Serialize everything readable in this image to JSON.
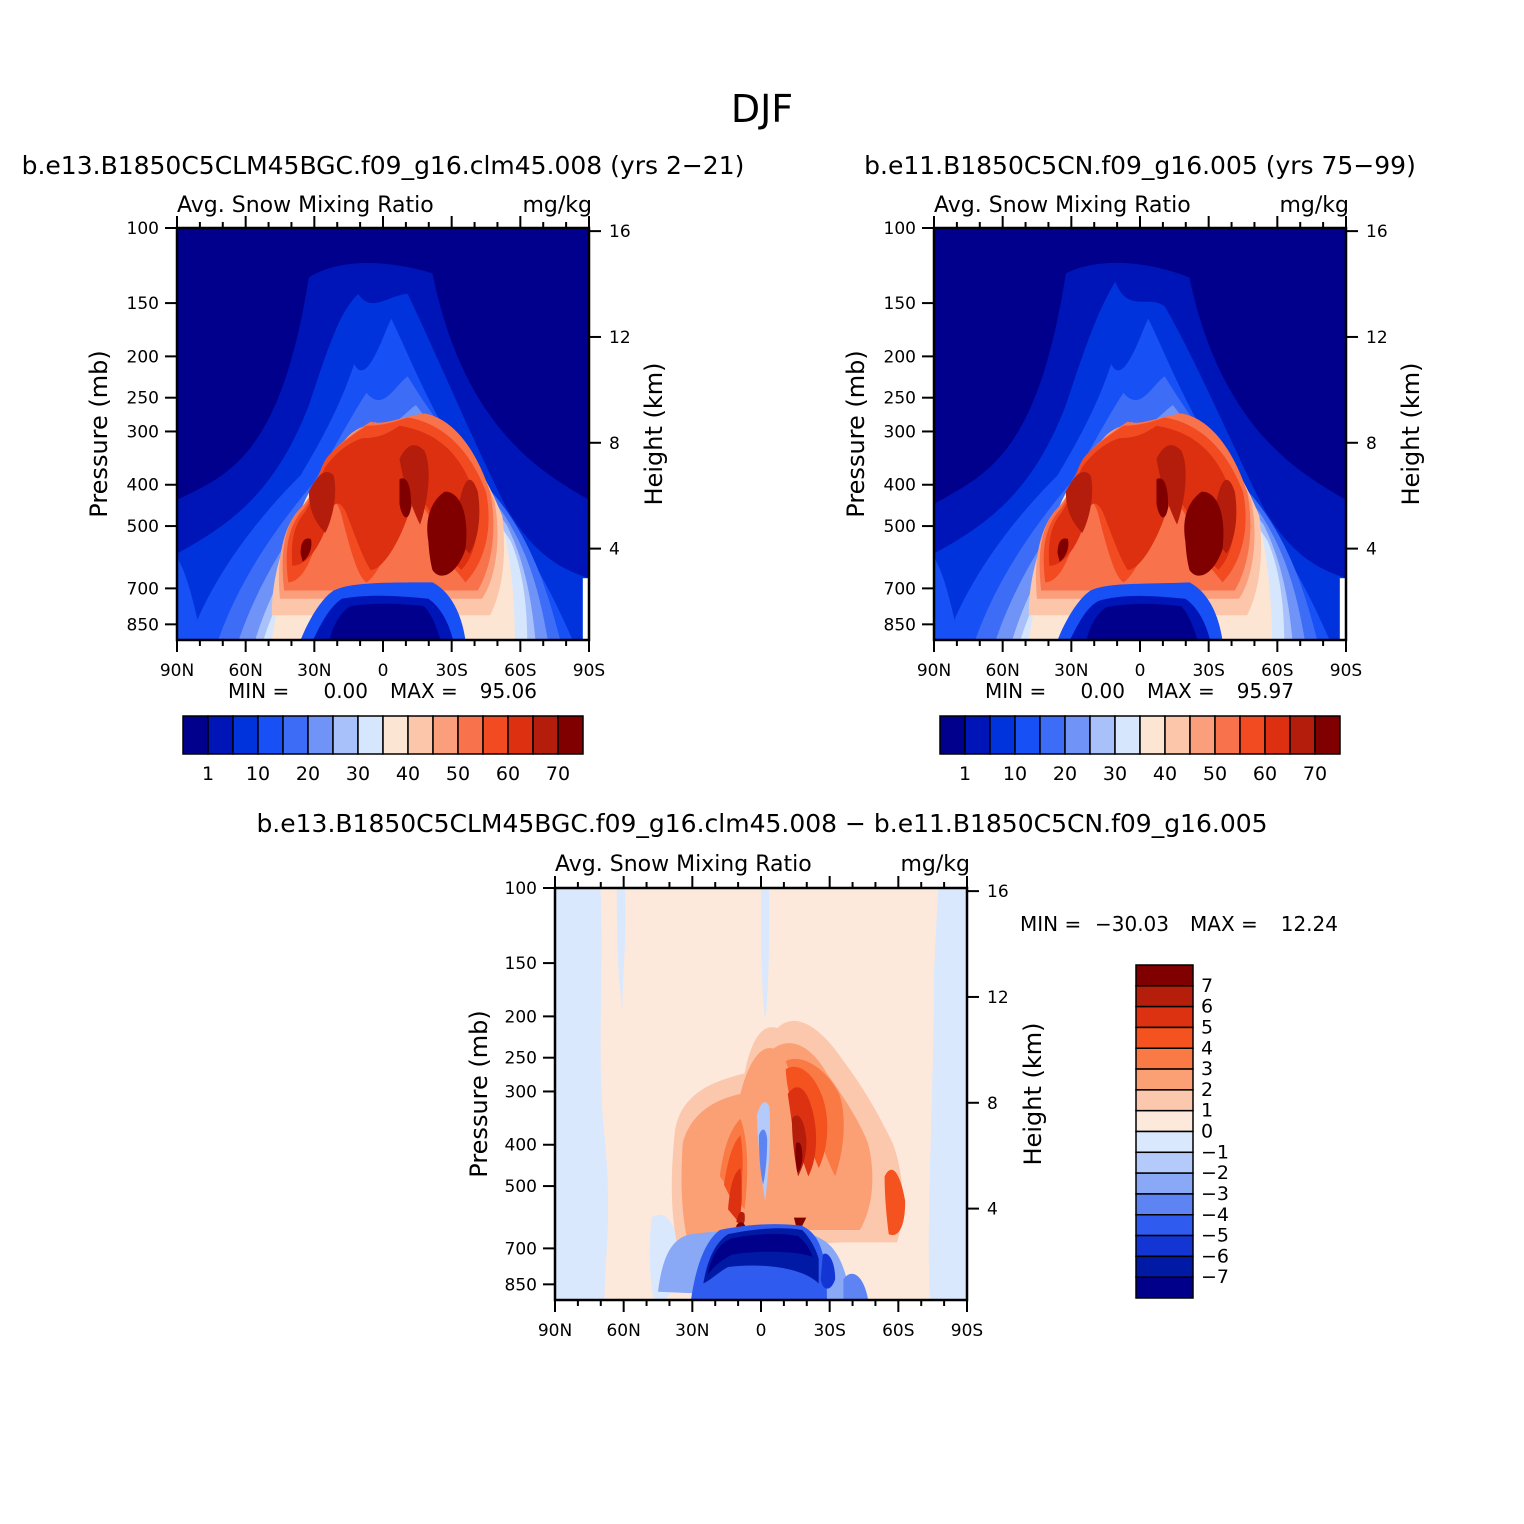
{
  "page_title": "DJF",
  "palettes": {
    "abs": [
      "#00008c",
      "#0015b7",
      "#0033db",
      "#1750f5",
      "#3d6cf7",
      "#6f93f7",
      "#a9c1fa",
      "#d6e6fd",
      "#fde5d4",
      "#fcc6aa",
      "#fb9e7c",
      "#f8734c",
      "#f24b22",
      "#dc3010",
      "#b41d0b",
      "#800000"
    ],
    "diff": [
      "#800000",
      "#b51e0a",
      "#dc3212",
      "#f4521f",
      "#fa7a46",
      "#fba075",
      "#fcc8ad",
      "#fde9dc",
      "#d9e8fd",
      "#b3cafa",
      "#89a8f6",
      "#5e84f3",
      "#2f5bef",
      "#1335d4",
      "#001aa6",
      "#00008a"
    ]
  },
  "chart_data": [
    {
      "type": "heatmap",
      "panel": "model1",
      "title": "b.e13.B1850C5CLM45BGC.f09_g16.clm45.008 (yrs 2-21)",
      "subtitle_left": "Avg. Snow Mixing Ratio",
      "subtitle_right": "mg/kg",
      "ylabel": "Pressure (mb)",
      "ylabel_right": "Height (km)",
      "x_tick_labels": [
        "90N",
        "60N",
        "30N",
        "0",
        "30S",
        "60S",
        "90S"
      ],
      "y_tick_labels": [
        "100",
        "150",
        "200",
        "250",
        "300",
        "400",
        "500",
        "700",
        "850"
      ],
      "y_right_tick_labels": [
        "16",
        "12",
        "8",
        "4"
      ],
      "xlim": [
        90,
        -90
      ],
      "ylim": [
        100,
        925
      ],
      "y_scale": "log",
      "min_label": "MIN =",
      "min_value": "0.00",
      "max_label": "MAX =",
      "max_value": "95.06",
      "contour_levels": [
        1,
        5,
        10,
        15,
        20,
        25,
        30,
        35,
        40,
        45,
        50,
        55,
        60,
        65,
        70
      ],
      "colorbar_labels": [
        "1",
        "10",
        "20",
        "30",
        "40",
        "50",
        "60",
        "70"
      ],
      "colorbar_orientation": "horizontal"
    },
    {
      "type": "heatmap",
      "panel": "model2",
      "title": "b.e11.B1850C5CN.f09_g16.005 (yrs 75-99)",
      "subtitle_left": "Avg. Snow Mixing Ratio",
      "subtitle_right": "mg/kg",
      "ylabel": "Pressure (mb)",
      "ylabel_right": "Height (km)",
      "x_tick_labels": [
        "90N",
        "60N",
        "30N",
        "0",
        "30S",
        "60S",
        "90S"
      ],
      "y_tick_labels": [
        "100",
        "150",
        "200",
        "250",
        "300",
        "400",
        "500",
        "700",
        "850"
      ],
      "y_right_tick_labels": [
        "16",
        "12",
        "8",
        "4"
      ],
      "xlim": [
        90,
        -90
      ],
      "ylim": [
        100,
        925
      ],
      "y_scale": "log",
      "min_label": "MIN =",
      "min_value": "0.00",
      "max_label": "MAX =",
      "max_value": "95.97",
      "contour_levels": [
        1,
        5,
        10,
        15,
        20,
        25,
        30,
        35,
        40,
        45,
        50,
        55,
        60,
        65,
        70
      ],
      "colorbar_labels": [
        "1",
        "10",
        "20",
        "30",
        "40",
        "50",
        "60",
        "70"
      ],
      "colorbar_orientation": "horizontal"
    },
    {
      "type": "heatmap",
      "panel": "difference",
      "title": "b.e13.B1850C5CLM45BGC.f09_g16.clm45.008 - b.e11.B1850C5CN.f09_g16.005",
      "subtitle_left": "Avg. Snow Mixing Ratio",
      "subtitle_right": "mg/kg",
      "ylabel": "Pressure (mb)",
      "ylabel_right": "Height (km)",
      "x_tick_labels": [
        "90N",
        "60N",
        "30N",
        "0",
        "30S",
        "60S",
        "90S"
      ],
      "y_tick_labels": [
        "100",
        "150",
        "200",
        "250",
        "300",
        "400",
        "500",
        "700",
        "850"
      ],
      "y_right_tick_labels": [
        "16",
        "12",
        "8",
        "4"
      ],
      "xlim": [
        90,
        -90
      ],
      "ylim": [
        100,
        925
      ],
      "y_scale": "log",
      "min_label": "MIN =",
      "min_value": "-30.03",
      "max_label": "MAX =",
      "max_value": "12.24",
      "contour_levels": [
        -7,
        -6,
        -5,
        -4,
        -3,
        -2,
        -1,
        0,
        1,
        2,
        3,
        4,
        5,
        6,
        7
      ],
      "colorbar_labels": [
        "7",
        "6",
        "5",
        "4",
        "3",
        "2",
        "1",
        "0",
        "-1",
        "-2",
        "-3",
        "-4",
        "-5",
        "-6",
        "-7"
      ],
      "colorbar_orientation": "vertical"
    }
  ]
}
